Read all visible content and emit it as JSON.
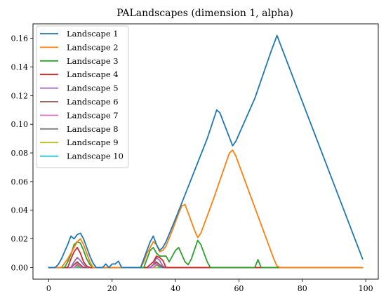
{
  "chart_data": {
    "type": "line",
    "title": "PALandscapes (dimension 1, alpha)",
    "xlabel": "",
    "ylabel": "",
    "xlim": [
      -4.95,
      103.95
    ],
    "ylim": [
      -0.0081,
      0.1701
    ],
    "xticks": [
      0,
      20,
      40,
      60,
      80,
      100
    ],
    "yticks": [
      0.0,
      0.02,
      0.04,
      0.06,
      0.08,
      0.1,
      0.12,
      0.14,
      0.16
    ],
    "ytick_labels": [
      "0.00",
      "0.02",
      "0.04",
      "0.06",
      "0.08",
      "0.10",
      "0.12",
      "0.14",
      "0.16"
    ],
    "legend_position": "upper-left",
    "grid": false,
    "series": [
      {
        "name": "Landscape 1",
        "color": "#1f77b4",
        "points": [
          [
            0,
            0
          ],
          [
            2,
            0
          ],
          [
            3,
            0.002
          ],
          [
            4,
            0.006
          ],
          [
            5,
            0.011
          ],
          [
            6,
            0.016
          ],
          [
            7,
            0.022
          ],
          [
            8,
            0.02
          ],
          [
            9,
            0.023
          ],
          [
            10,
            0.024
          ],
          [
            11,
            0.02
          ],
          [
            12,
            0.014
          ],
          [
            13,
            0.008
          ],
          [
            14,
            0.003
          ],
          [
            15,
            0
          ],
          [
            17,
            0
          ],
          [
            18,
            0.0025
          ],
          [
            19,
            0
          ],
          [
            20,
            0.0025
          ],
          [
            21,
            0.0025
          ],
          [
            22,
            0.0045
          ],
          [
            23,
            0
          ],
          [
            29,
            0
          ],
          [
            30,
            0.006
          ],
          [
            31,
            0.012
          ],
          [
            32,
            0.018
          ],
          [
            33,
            0.022
          ],
          [
            34,
            0.016
          ],
          [
            35,
            0.012
          ],
          [
            36,
            0.014
          ],
          [
            37,
            0.018
          ],
          [
            40,
            0.034
          ],
          [
            45,
            0.062
          ],
          [
            50,
            0.09
          ],
          [
            53,
            0.11
          ],
          [
            54,
            0.108
          ],
          [
            58,
            0.085
          ],
          [
            59,
            0.088
          ],
          [
            65,
            0.118
          ],
          [
            70,
            0.15
          ],
          [
            72,
            0.162
          ],
          [
            99,
            0.006
          ]
        ]
      },
      {
        "name": "Landscape 2",
        "color": "#ff7f0e",
        "points": [
          [
            0,
            0
          ],
          [
            4,
            0
          ],
          [
            5,
            0.003
          ],
          [
            6,
            0.006
          ],
          [
            7,
            0.01
          ],
          [
            8,
            0.014
          ],
          [
            9,
            0.018
          ],
          [
            10,
            0.02
          ],
          [
            11,
            0.016
          ],
          [
            12,
            0.01
          ],
          [
            13,
            0.004
          ],
          [
            14,
            0
          ],
          [
            29,
            0
          ],
          [
            30,
            0.004
          ],
          [
            31,
            0.01
          ],
          [
            32,
            0.014
          ],
          [
            33,
            0.018
          ],
          [
            34,
            0.016
          ],
          [
            35,
            0.011
          ],
          [
            36,
            0.012
          ],
          [
            37,
            0.015
          ],
          [
            39,
            0.026
          ],
          [
            41,
            0.038
          ],
          [
            42,
            0.043
          ],
          [
            43,
            0.044
          ],
          [
            44,
            0.038
          ],
          [
            46,
            0.026
          ],
          [
            47,
            0.021
          ],
          [
            48,
            0.024
          ],
          [
            52,
            0.048
          ],
          [
            57,
            0.08
          ],
          [
            58,
            0.082
          ],
          [
            59,
            0.078
          ],
          [
            62,
            0.06
          ],
          [
            66,
            0.036
          ],
          [
            71,
            0.006
          ],
          [
            72,
            0.001
          ],
          [
            73,
            0
          ],
          [
            99,
            0
          ]
        ]
      },
      {
        "name": "Landscape 3",
        "color": "#2ca02c",
        "points": [
          [
            0,
            0
          ],
          [
            5,
            0
          ],
          [
            6,
            0.004
          ],
          [
            7,
            0.009
          ],
          [
            8,
            0.016
          ],
          [
            9,
            0.018
          ],
          [
            10,
            0.017
          ],
          [
            11,
            0.012
          ],
          [
            12,
            0.006
          ],
          [
            13,
            0.002
          ],
          [
            14,
            0
          ],
          [
            30,
            0
          ],
          [
            31,
            0.006
          ],
          [
            32,
            0.012
          ],
          [
            33,
            0.014
          ],
          [
            34,
            0.01
          ],
          [
            35,
            0.008
          ],
          [
            37,
            0.008
          ],
          [
            38,
            0.004
          ],
          [
            39,
            0.008
          ],
          [
            40,
            0.012
          ],
          [
            41,
            0.014
          ],
          [
            43,
            0.004
          ],
          [
            44,
            0.002
          ],
          [
            45,
            0.006
          ],
          [
            47,
            0.019
          ],
          [
            48,
            0.016
          ],
          [
            49,
            0.01
          ],
          [
            50,
            0.004
          ],
          [
            51,
            0
          ],
          [
            65,
            0
          ],
          [
            66,
            0.0055
          ],
          [
            67,
            0
          ],
          [
            99,
            0
          ]
        ]
      },
      {
        "name": "Landscape 4",
        "color": "#d62728",
        "points": [
          [
            0,
            0
          ],
          [
            6,
            0
          ],
          [
            7,
            0.006
          ],
          [
            8,
            0.011
          ],
          [
            9,
            0.014
          ],
          [
            10,
            0.01
          ],
          [
            11,
            0.004
          ],
          [
            12,
            0.001
          ],
          [
            13,
            0
          ],
          [
            31,
            0
          ],
          [
            32,
            0.002
          ],
          [
            33,
            0.004
          ],
          [
            34,
            0.008
          ],
          [
            35,
            0.007
          ],
          [
            36,
            0.005
          ],
          [
            37,
            0
          ],
          [
            99,
            0
          ]
        ]
      },
      {
        "name": "Landscape 5",
        "color": "#9467bd",
        "points": [
          [
            0,
            0
          ],
          [
            7,
            0
          ],
          [
            8,
            0.004
          ],
          [
            9,
            0.007
          ],
          [
            10,
            0.005
          ],
          [
            11,
            0.002
          ],
          [
            12,
            0
          ],
          [
            32,
            0
          ],
          [
            33,
            0.002
          ],
          [
            34,
            0.007
          ],
          [
            35,
            0.005
          ],
          [
            36,
            0.001
          ],
          [
            37,
            0
          ],
          [
            99,
            0
          ]
        ]
      },
      {
        "name": "Landscape 6",
        "color": "#8c564b",
        "points": [
          [
            0,
            0
          ],
          [
            7,
            0
          ],
          [
            8,
            0.002
          ],
          [
            9,
            0.004
          ],
          [
            10,
            0.002
          ],
          [
            11,
            0
          ],
          [
            32,
            0
          ],
          [
            34,
            0.004
          ],
          [
            35,
            0.002
          ],
          [
            36,
            0
          ],
          [
            99,
            0
          ]
        ]
      },
      {
        "name": "Landscape 7",
        "color": "#e377c2",
        "points": [
          [
            0,
            0
          ],
          [
            8,
            0
          ],
          [
            9,
            0.003
          ],
          [
            10,
            0.001
          ],
          [
            11,
            0
          ],
          [
            33,
            0
          ],
          [
            34,
            0.003
          ],
          [
            35,
            0.002
          ],
          [
            36,
            0
          ],
          [
            99,
            0
          ]
        ]
      },
      {
        "name": "Landscape 8",
        "color": "#7f7f7f",
        "points": [
          [
            0,
            0
          ],
          [
            8,
            0
          ],
          [
            9,
            0.002
          ],
          [
            10,
            0
          ],
          [
            33,
            0
          ],
          [
            34,
            0.002
          ],
          [
            35,
            0.001
          ],
          [
            36,
            0
          ],
          [
            99,
            0
          ]
        ]
      },
      {
        "name": "Landscape 9",
        "color": "#bcbd22",
        "points": [
          [
            0,
            0
          ],
          [
            8,
            0
          ],
          [
            9,
            0.001
          ],
          [
            10,
            0
          ],
          [
            34,
            0
          ],
          [
            35,
            0.001
          ],
          [
            36,
            0
          ],
          [
            99,
            0
          ]
        ]
      },
      {
        "name": "Landscape 10",
        "color": "#17becf",
        "points": [
          [
            0,
            0
          ],
          [
            99,
            0
          ]
        ]
      }
    ]
  }
}
